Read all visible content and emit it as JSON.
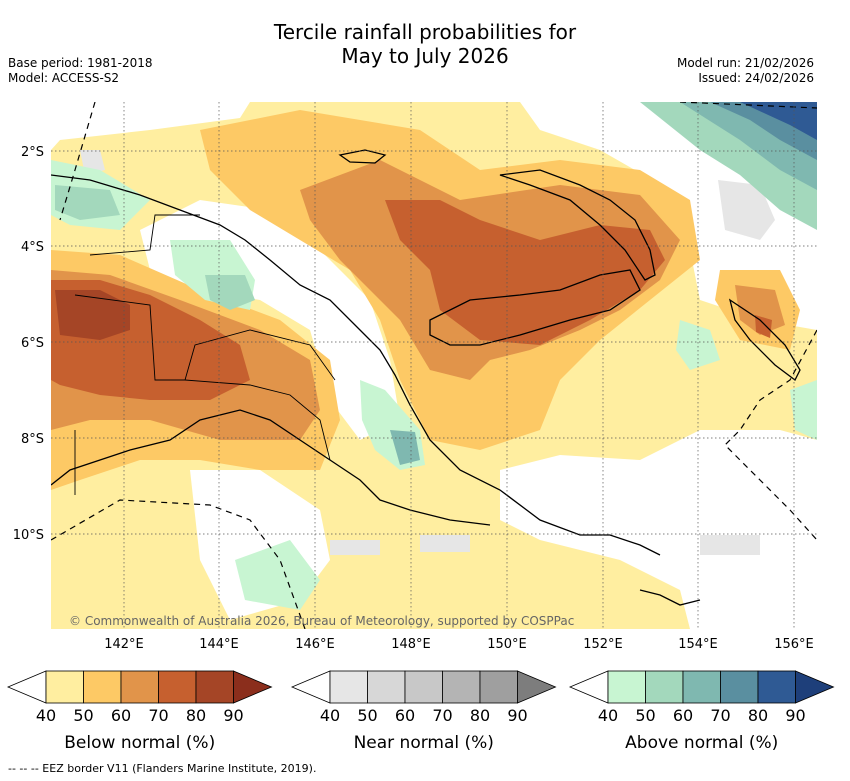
{
  "title": {
    "line1": "Tercile rainfall probabilities for",
    "line2": "May to July 2026"
  },
  "meta": {
    "base_period": "Base period: 1981-2018",
    "model": "Model: ACCESS-S2",
    "model_run": "Model run: 21/02/2026",
    "issued": "Issued: 24/02/2026"
  },
  "map": {
    "region": "Papua New Guinea",
    "lat_labels": [
      "2°S",
      "4°S",
      "6°S",
      "8°S",
      "10°S"
    ],
    "lon_labels": [
      "142°E",
      "144°E",
      "146°E",
      "148°E",
      "150°E",
      "152°E",
      "154°E",
      "156°E"
    ],
    "copyright": "© Commonwealth of Australia 2026, Bureau of Meteorology, supported by COSPPac"
  },
  "colorbars": [
    {
      "label": "Below normal (%)",
      "ticks": [
        "40",
        "50",
        "60",
        "70",
        "80",
        "90"
      ],
      "colors": [
        "#ffeea0",
        "#fdc965",
        "#e1944a",
        "#c6602f",
        "#a54526",
        "#8b2e1c"
      ]
    },
    {
      "label": "Near normal (%)",
      "ticks": [
        "40",
        "50",
        "60",
        "70",
        "80",
        "90"
      ],
      "colors": [
        "#e6e6e6",
        "#d7d7d7",
        "#c8c8c8",
        "#b4b4b4",
        "#9f9f9f",
        "#7d7d7d"
      ]
    },
    {
      "label": "Above normal (%)",
      "ticks": [
        "40",
        "50",
        "60",
        "70",
        "80",
        "90"
      ],
      "colors": [
        "#c8f5d2",
        "#a3d8bc",
        "#7fb8b0",
        "#5a8fa0",
        "#2f5a94",
        "#1e3f7a"
      ]
    }
  ],
  "footer": "--  --  -- EEZ border V11 (Flanders Marine Institute, 2019)."
}
